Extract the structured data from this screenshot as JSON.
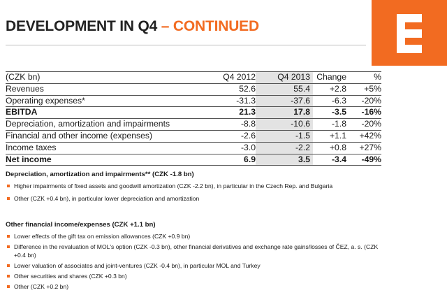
{
  "header": {
    "title_main": "DEVELOPMENT IN Q4",
    "title_accent": "– CONTINUED",
    "logo_color": "#f26b21"
  },
  "table": {
    "columns": [
      "(CZK bn)",
      "Q4 2012",
      "Q4 2013",
      "Change",
      "%"
    ],
    "rows": [
      {
        "label": "Revenues",
        "q4_2012": "52.6",
        "q4_2013": "55.4",
        "change": "+2.8",
        "pct": "+5%"
      },
      {
        "label": "Operating expenses*",
        "q4_2012": "-31.3",
        "q4_2013": "-37.6",
        "change": "-6.3",
        "pct": "-20%"
      },
      {
        "label": "EBITDA",
        "q4_2012": "21.3",
        "q4_2013": "17.8",
        "change": "-3.5",
        "pct": "-16%"
      },
      {
        "label": "Depreciation, amortization and impairments",
        "q4_2012": "-8.8",
        "q4_2013": "-10.6",
        "change": "-1.8",
        "pct": "-20%"
      },
      {
        "label": "Financial and other income (expenses)",
        "q4_2012": "-2.6",
        "q4_2013": "-1.5",
        "change": "+1.1",
        "pct": "+42%"
      },
      {
        "label": "Income taxes",
        "q4_2012": "-3.0",
        "q4_2013": "-2.2",
        "change": "+0.8",
        "pct": "+27%"
      },
      {
        "label": "Net income",
        "q4_2012": "6.9",
        "q4_2013": "3.5",
        "change": "-3.4",
        "pct": "-49%"
      }
    ]
  },
  "depreciation_section": {
    "heading": "Depreciation, amortization and impairments** (CZK -1.8 bn)",
    "bullets": [
      "Higher impairments of fixed assets and goodwill amortization (CZK -2.2 bn), in particular in the Czech Rep. and Bulgaria",
      "Other (CZK +0.4 bn), in particular lower depreciation and amortization"
    ]
  },
  "financial_section": {
    "heading": "Other financial income/expenses (CZK +1.1 bn)",
    "bullets": [
      "Lower effects of the gift tax on emission allowances (CZK +0.9 bn)",
      "Difference in the revaluation of MOL's option (CZK -0.3 bn), other financial derivatives and exchange rate gains/losses of ČEZ, a. s. (CZK +0.4 bn)",
      "Lower valuation of associates and joint-ventures (CZK -0.4 bn), in particular MOL and Turkey",
      "Other securities and shares (CZK +0.3 bn)",
      "Other (CZK +0.2 bn)"
    ]
  }
}
